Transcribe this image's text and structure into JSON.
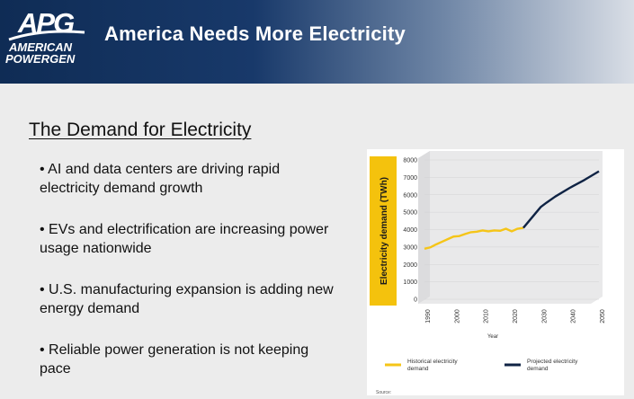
{
  "header": {
    "logo_main": "APG",
    "logo_line1": "AMERICAN",
    "logo_line2": "POWERGEN",
    "title": "America Needs More Electricity"
  },
  "content": {
    "section_title": "The Demand for Electricity",
    "bullets": [
      "• AI and data centers are driving rapid electricity demand growth",
      "• EVs and electrification are increasing power usage nationwide",
      "• U.S. manufacturing expansion is adding new energy demand",
      "• Reliable power generation is not keeping pace"
    ]
  },
  "colors": {
    "header_dark": "#0f2c55",
    "historical": "#f5c518",
    "projected": "#0f2344",
    "axis_band": "#f4c20d"
  },
  "chart_data": {
    "type": "line",
    "ylabel": "Electricity demand (TWh)",
    "xlabel": "Year",
    "ylim": [
      0,
      8000
    ],
    "xlim": [
      1990,
      2050
    ],
    "yticks": [
      0,
      1000,
      2000,
      3000,
      4000,
      5000,
      6000,
      7000,
      8000
    ],
    "xticks": [
      1990,
      2000,
      2010,
      2020,
      2030,
      2040,
      2050
    ],
    "series": [
      {
        "name": "Historical electricity demand",
        "color": "#f5c518",
        "x": [
          1990,
          1992,
          1994,
          1996,
          1998,
          2000,
          2002,
          2004,
          2006,
          2008,
          2010,
          2012,
          2014,
          2016,
          2018,
          2020,
          2022,
          2024
        ],
        "y": [
          2900,
          2980,
          3150,
          3300,
          3450,
          3600,
          3630,
          3750,
          3850,
          3880,
          3950,
          3900,
          3950,
          3930,
          4050,
          3900,
          4050,
          4100
        ]
      },
      {
        "name": "Projected electricity demand",
        "color": "#0f2344",
        "x": [
          2024,
          2026,
          2028,
          2030,
          2032,
          2035,
          2040,
          2045,
          2050
        ],
        "y": [
          4100,
          4500,
          4900,
          5300,
          5550,
          5900,
          6400,
          6850,
          7350
        ]
      }
    ],
    "legend": "bottom",
    "source_label": "Source:"
  }
}
